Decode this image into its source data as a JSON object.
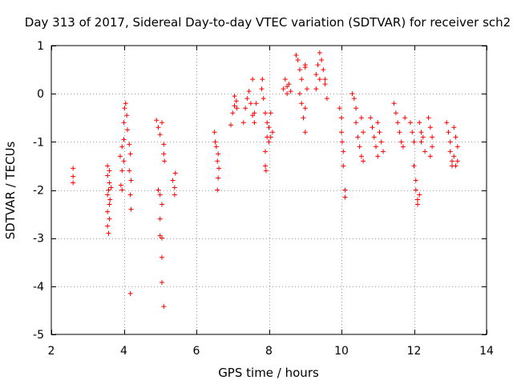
{
  "chart_data": {
    "type": "scatter",
    "title": "Day 313 of 2017, Sidereal Day-to-day VTEC variation (SDTVAR) for receiver sch2",
    "xlabel": "GPS time / hours",
    "ylabel": "SDTVAR / TECUs",
    "xlim": [
      2,
      14
    ],
    "ylim": [
      -5,
      1
    ],
    "xticks": [
      2,
      4,
      6,
      8,
      10,
      12,
      14
    ],
    "yticks": [
      -5,
      -4,
      -3,
      -2,
      -1,
      0,
      1
    ],
    "grid": true,
    "marker": "+",
    "color": "#ff0000",
    "series": [
      {
        "name": "SDTVAR",
        "points": [
          [
            2.6,
            -1.55
          ],
          [
            2.6,
            -1.72
          ],
          [
            2.6,
            -1.85
          ],
          [
            3.55,
            -1.5
          ],
          [
            3.6,
            -1.6
          ],
          [
            3.55,
            -1.7
          ],
          [
            3.6,
            -1.85
          ],
          [
            3.58,
            -2.0
          ],
          [
            3.55,
            -2.1
          ],
          [
            3.6,
            -2.3
          ],
          [
            3.55,
            -2.45
          ],
          [
            3.6,
            -2.6
          ],
          [
            3.55,
            -2.75
          ],
          [
            3.58,
            -2.9
          ],
          [
            3.65,
            -1.95
          ],
          [
            3.62,
            -2.2
          ],
          [
            3.9,
            -1.3
          ],
          [
            3.95,
            -1.1
          ],
          [
            4.0,
            -0.95
          ],
          [
            4.0,
            -0.6
          ],
          [
            4.02,
            -0.3
          ],
          [
            4.05,
            -0.2
          ],
          [
            4.08,
            -0.45
          ],
          [
            4.1,
            -0.75
          ],
          [
            4.0,
            -1.4
          ],
          [
            3.95,
            -1.6
          ],
          [
            3.92,
            -1.9
          ],
          [
            3.95,
            -2.0
          ],
          [
            4.15,
            -1.05
          ],
          [
            4.18,
            -1.25
          ],
          [
            4.15,
            -1.6
          ],
          [
            4.2,
            -1.8
          ],
          [
            4.18,
            -2.1
          ],
          [
            4.2,
            -2.4
          ],
          [
            4.18,
            -4.15
          ],
          [
            4.9,
            -0.55
          ],
          [
            4.95,
            -0.7
          ],
          [
            5.0,
            -0.85
          ],
          [
            5.05,
            -0.6
          ],
          [
            5.1,
            -1.05
          ],
          [
            5.1,
            -1.25
          ],
          [
            5.12,
            -1.4
          ],
          [
            4.95,
            -2.0
          ],
          [
            5.0,
            -2.1
          ],
          [
            5.05,
            -2.3
          ],
          [
            5.0,
            -2.6
          ],
          [
            5.0,
            -2.95
          ],
          [
            5.05,
            -3.0
          ],
          [
            5.05,
            -3.4
          ],
          [
            5.05,
            -3.92
          ],
          [
            5.1,
            -4.42
          ],
          [
            5.35,
            -1.8
          ],
          [
            5.4,
            -1.95
          ],
          [
            5.4,
            -2.1
          ],
          [
            5.42,
            -1.65
          ],
          [
            6.5,
            -0.8
          ],
          [
            6.52,
            -1.0
          ],
          [
            6.55,
            -1.1
          ],
          [
            6.6,
            -1.25
          ],
          [
            6.58,
            -1.4
          ],
          [
            6.62,
            -1.55
          ],
          [
            6.6,
            -1.75
          ],
          [
            6.58,
            -2.0
          ],
          [
            6.95,
            -0.65
          ],
          [
            7.0,
            -0.4
          ],
          [
            7.05,
            -0.25
          ],
          [
            7.05,
            -0.05
          ],
          [
            7.1,
            -0.15
          ],
          [
            7.12,
            -0.3
          ],
          [
            7.3,
            -0.6
          ],
          [
            7.35,
            -0.3
          ],
          [
            7.4,
            -0.1
          ],
          [
            7.45,
            0.05
          ],
          [
            7.5,
            -0.2
          ],
          [
            7.55,
            -0.45
          ],
          [
            7.55,
            0.3
          ],
          [
            7.6,
            -0.4
          ],
          [
            7.6,
            -0.6
          ],
          [
            7.65,
            -0.2
          ],
          [
            7.8,
            0.1
          ],
          [
            7.82,
            0.3
          ],
          [
            7.85,
            -0.1
          ],
          [
            7.9,
            -0.4
          ],
          [
            7.95,
            -0.6
          ],
          [
            7.95,
            -0.9
          ],
          [
            7.9,
            -1.2
          ],
          [
            7.9,
            -1.5
          ],
          [
            7.92,
            -1.6
          ],
          [
            8.0,
            -0.7
          ],
          [
            8.05,
            -0.9
          ],
          [
            8.05,
            -0.4
          ],
          [
            8.1,
            -0.8
          ],
          [
            8.0,
            -1.0
          ],
          [
            8.4,
            0.1
          ],
          [
            8.45,
            0.3
          ],
          [
            8.5,
            0.0
          ],
          [
            8.5,
            0.15
          ],
          [
            8.55,
            0.2
          ],
          [
            8.6,
            0.05
          ],
          [
            8.75,
            0.8
          ],
          [
            8.8,
            0.7
          ],
          [
            8.85,
            0.5
          ],
          [
            8.9,
            0.3
          ],
          [
            8.85,
            0.0
          ],
          [
            8.9,
            -0.2
          ],
          [
            8.95,
            -0.5
          ],
          [
            9.0,
            -0.8
          ],
          [
            9.0,
            -0.3
          ],
          [
            9.05,
            0.1
          ],
          [
            9.0,
            0.55
          ],
          [
            9.0,
            0.6
          ],
          [
            9.3,
            0.4
          ],
          [
            9.35,
            0.6
          ],
          [
            9.4,
            0.85
          ],
          [
            9.45,
            0.7
          ],
          [
            9.5,
            0.5
          ],
          [
            9.55,
            0.3
          ],
          [
            9.55,
            0.2
          ],
          [
            9.6,
            -0.1
          ],
          [
            9.4,
            0.3
          ],
          [
            9.3,
            0.1
          ],
          [
            9.95,
            -0.3
          ],
          [
            10.0,
            -0.5
          ],
          [
            10.0,
            -0.8
          ],
          [
            10.02,
            -1.0
          ],
          [
            10.05,
            -1.2
          ],
          [
            10.05,
            -1.5
          ],
          [
            10.1,
            -2.0
          ],
          [
            10.1,
            -2.15
          ],
          [
            10.3,
            0.0
          ],
          [
            10.35,
            -0.1
          ],
          [
            10.4,
            -0.3
          ],
          [
            10.4,
            -0.6
          ],
          [
            10.45,
            -0.9
          ],
          [
            10.5,
            -1.1
          ],
          [
            10.55,
            -1.3
          ],
          [
            10.55,
            -0.5
          ],
          [
            10.6,
            -0.8
          ],
          [
            10.6,
            -1.4
          ],
          [
            10.8,
            -0.5
          ],
          [
            10.85,
            -0.7
          ],
          [
            10.9,
            -0.9
          ],
          [
            10.95,
            -1.1
          ],
          [
            11.0,
            -1.3
          ],
          [
            11.0,
            -0.6
          ],
          [
            11.05,
            -0.8
          ],
          [
            11.1,
            -1.0
          ],
          [
            11.15,
            -1.2
          ],
          [
            11.45,
            -0.2
          ],
          [
            11.5,
            -0.4
          ],
          [
            11.55,
            -0.6
          ],
          [
            11.6,
            -0.8
          ],
          [
            11.65,
            -1.0
          ],
          [
            11.7,
            -1.1
          ],
          [
            11.75,
            -0.5
          ],
          [
            11.9,
            -0.6
          ],
          [
            11.95,
            -0.8
          ],
          [
            12.0,
            -1.0
          ],
          [
            12.0,
            -1.5
          ],
          [
            12.05,
            -1.8
          ],
          [
            12.05,
            -2.0
          ],
          [
            12.1,
            -2.2
          ],
          [
            12.1,
            -2.3
          ],
          [
            12.15,
            -2.1
          ],
          [
            12.15,
            -0.6
          ],
          [
            12.2,
            -0.8
          ],
          [
            12.2,
            -1.0
          ],
          [
            12.25,
            -0.9
          ],
          [
            12.3,
            -1.2
          ],
          [
            12.4,
            -0.5
          ],
          [
            12.45,
            -0.7
          ],
          [
            12.5,
            -0.9
          ],
          [
            12.5,
            -1.1
          ],
          [
            12.45,
            -1.3
          ],
          [
            12.9,
            -0.6
          ],
          [
            12.95,
            -0.8
          ],
          [
            13.0,
            -1.0
          ],
          [
            13.0,
            -1.2
          ],
          [
            13.05,
            -1.4
          ],
          [
            13.05,
            -1.5
          ],
          [
            13.1,
            -1.3
          ],
          [
            13.1,
            -0.7
          ],
          [
            13.15,
            -0.9
          ],
          [
            13.15,
            -1.5
          ],
          [
            13.2,
            -1.1
          ],
          [
            13.2,
            -1.4
          ]
        ]
      }
    ]
  }
}
